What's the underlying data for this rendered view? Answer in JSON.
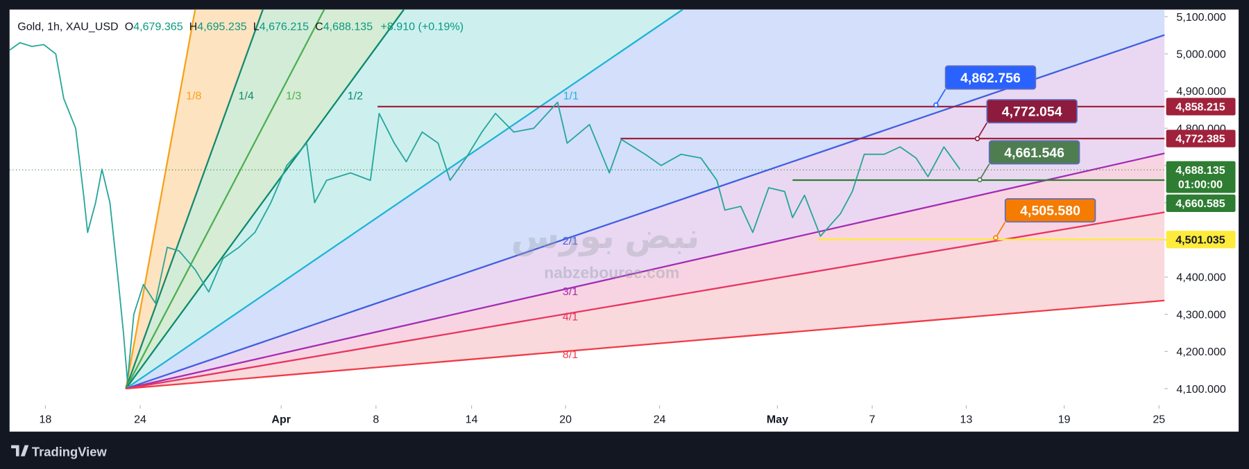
{
  "header": {
    "symbol": "Gold, 1h, XAU_USD",
    "open_label": "O",
    "open": "4,679.365",
    "high_label": "H",
    "high": "4,695.235",
    "low_label": "L",
    "low": "4,676.215",
    "close_label": "C",
    "close": "4,688.135",
    "change": "+8.910 (+0.19%)"
  },
  "watermark": {
    "brand": "نبض بورس",
    "site": "nabzebouree.com"
  },
  "branding": "TradingView",
  "chart_data": {
    "type": "line",
    "color": "#26a69a",
    "x": [
      0,
      1.3,
      2.8,
      4.3,
      5.8,
      6.8,
      8.3,
      9.3,
      9.8,
      10.8,
      11.6,
      12.6,
      13.6,
      14.3,
      14.8,
      15.6,
      16.8,
      18.3,
      19.8,
      21.3,
      23.3,
      25,
      26.8,
      28.8,
      30.8,
      32.8,
      34.8,
      37.3,
      38.3,
      39.8,
      42.8,
      45.3,
      46.4,
      48.3,
      49.8,
      51.8,
      53.8,
      55.3,
      57.3,
      59.3,
      61,
      63.3,
      65.8,
      68.8,
      70,
      72.8,
      75.3,
      76.8,
      79.8,
      81.8,
      84.3,
      86.8,
      88.8,
      89.8,
      91.8,
      93.3,
      95.3,
      97.3,
      98.3,
      99.8,
      101.8,
      104.3,
      105.8,
      107.3,
      109.8,
      111.8,
      113.8,
      115.3,
      117.3,
      119.3
    ],
    "values": [
      5010,
      5030,
      5020,
      5025,
      5000,
      4880,
      4800,
      4620,
      4520,
      4600,
      4690,
      4600,
      4400,
      4250,
      4120,
      4300,
      4380,
      4330,
      4480,
      4470,
      4420,
      4360,
      4450,
      4480,
      4520,
      4600,
      4700,
      4760,
      4600,
      4660,
      4680,
      4660,
      4840,
      4760,
      4710,
      4790,
      4760,
      4660,
      4720,
      4790,
      4840,
      4790,
      4800,
      4870,
      4760,
      4810,
      4680,
      4770,
      4730,
      4700,
      4730,
      4720,
      4660,
      4580,
      4590,
      4520,
      4640,
      4630,
      4560,
      4620,
      4510,
      4570,
      4630,
      4730,
      4730,
      4750,
      4720,
      4670,
      4750,
      4690
    ],
    "xlim": [
      0,
      145
    ],
    "ylim": [
      4055.0,
      5119.2
    ],
    "yticks": [
      {
        "value": 4100,
        "label": "4,100.000"
      },
      {
        "value": 4200,
        "label": "4,200.000"
      },
      {
        "value": 4300,
        "label": "4,300.000"
      },
      {
        "value": 4400,
        "label": "4,400.000"
      },
      {
        "value": 4500,
        "label": "4,500.000"
      },
      {
        "value": 4600,
        "label": "4,600.000"
      },
      {
        "value": 4700,
        "label": "4,700.000"
      },
      {
        "value": 4800,
        "label": "4,800.000"
      },
      {
        "value": 4900,
        "label": "4,900.000"
      },
      {
        "value": 5000,
        "label": "5,000.000"
      },
      {
        "value": 5100,
        "label": "5,100.000"
      }
    ],
    "xticks": [
      {
        "value": 4.5,
        "label": "18"
      },
      {
        "value": 16.4,
        "label": "24"
      },
      {
        "value": 34.1,
        "label": "Apr"
      },
      {
        "value": 46,
        "label": "8"
      },
      {
        "value": 58,
        "label": "14"
      },
      {
        "value": 69.8,
        "label": "20"
      },
      {
        "value": 81.6,
        "label": "24"
      },
      {
        "value": 96.4,
        "label": "May"
      },
      {
        "value": 108.3,
        "label": "7"
      },
      {
        "value": 120.1,
        "label": "13"
      },
      {
        "value": 132.4,
        "label": "19"
      },
      {
        "value": 144.3,
        "label": "25"
      }
    ],
    "fan": {
      "origin": [
        14.6,
        4100
      ],
      "lines": [
        {
          "label": "1/8",
          "color": "#f7a21b",
          "fill": "#fde3c0",
          "end": [
            23.3,
            5119.2
          ]
        },
        {
          "label": "1/4",
          "color": "#14896e",
          "fill": "#d3ecd8",
          "end": [
            31.8,
            5119.2
          ]
        },
        {
          "label": "1/3",
          "color": "#4caf50",
          "fill": "#d6ecd4",
          "end": [
            39.5,
            5119.2
          ]
        },
        {
          "label": "1/2",
          "color": "#0b8a6e",
          "fill": "#cdf0ef",
          "end": [
            49.5,
            5119.2
          ]
        },
        {
          "label": "1/1",
          "color": "#1eb3d6",
          "fill": "#d3dffb",
          "end": [
            84.5,
            5119.2
          ]
        },
        {
          "label": "2/1",
          "color": "#3f5ee0",
          "fill": "#ead8f2",
          "end": [
            145,
            5050.9
          ]
        },
        {
          "label": "3/1",
          "color": "#a32cb4",
          "fill": "#f8d4e2",
          "end": [
            145,
            4732.5
          ]
        },
        {
          "label": "4/1",
          "color": "#e8345f",
          "fill": "#fad9dc",
          "end": [
            145,
            4574.3
          ]
        },
        {
          "label": "8/1",
          "color": "#ef3b45",
          "end": [
            145,
            4337.1
          ]
        }
      ]
    },
    "levels": [
      {
        "value": 4858.215,
        "label": "4,858.215",
        "color": "#a0213b",
        "start": 46.2
      },
      {
        "value": 4772.385,
        "label": "4,772.385",
        "color": "#a0213b",
        "start": 76.7
      },
      {
        "value": 4660.585,
        "label": "4,660.585",
        "color": "#2e7d32",
        "start": 98.3
      },
      {
        "value": 4501.035,
        "label": "4,501.035",
        "color": "#ffeb3b",
        "start": 101.5
      }
    ],
    "current_price": {
      "value": 4688.135,
      "label": "4,688.135",
      "countdown": "01:00:00",
      "color": "#2e7d32"
    },
    "callouts": [
      {
        "value": 4862.756,
        "label": "4,862.756",
        "color": "#2962ff",
        "x": 116.3
      },
      {
        "value": 4772.054,
        "label": "4,772.054",
        "color": "#8d1b3d",
        "x": 121.5
      },
      {
        "value": 4661.546,
        "label": "4,661.546",
        "color": "#4e7d50",
        "x": 121.8
      },
      {
        "value": 4505.58,
        "label": "4,505.580",
        "color": "#f57c00",
        "x": 123.8
      }
    ]
  }
}
